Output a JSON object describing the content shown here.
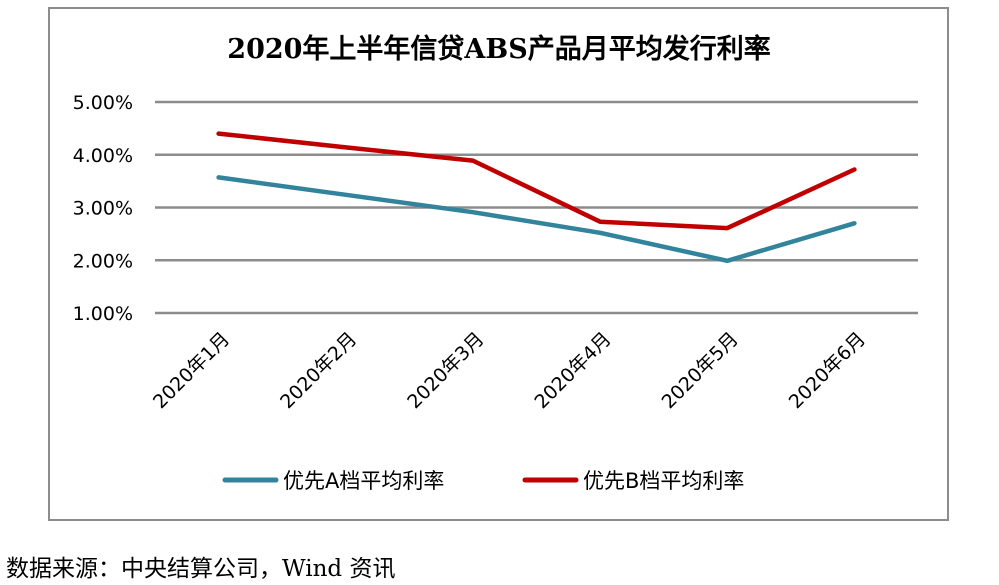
{
  "chart_data": {
    "type": "line",
    "title": "2020年上半年信贷ABS产品月平均发行利率",
    "categories": [
      "2020年1月",
      "2020年2月",
      "2020年3月",
      "2020年4月",
      "2020年5月",
      "2020年6月"
    ],
    "y_ticks": [
      "1.00%",
      "2.00%",
      "3.00%",
      "4.00%",
      "5.00%"
    ],
    "ylim": [
      1.0,
      5.0
    ],
    "grid": true,
    "legend_position": "bottom",
    "series": [
      {
        "name": "优先A档平均利率",
        "color": "#31849B",
        "values": [
          3.57,
          3.24,
          2.91,
          2.52,
          1.99,
          2.7
        ]
      },
      {
        "name": "优先B档平均利率",
        "color": "#C00000",
        "values": [
          4.4,
          4.14,
          3.89,
          2.73,
          2.61,
          3.72
        ]
      }
    ]
  },
  "source_note": "数据来源：中央结算公司，Wind 资讯"
}
